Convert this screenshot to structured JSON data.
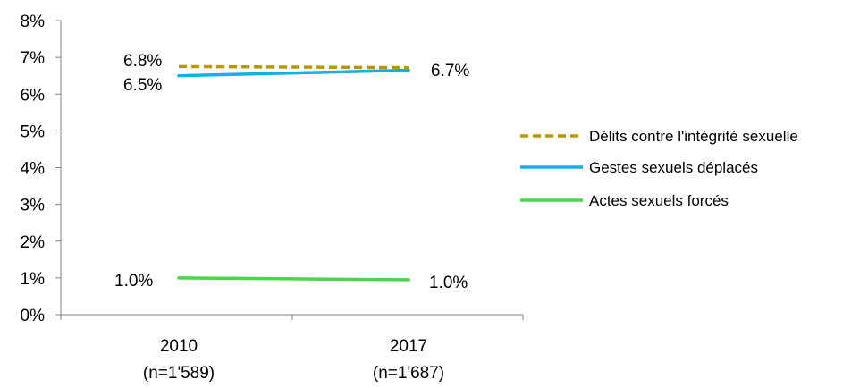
{
  "chart_data": {
    "type": "line",
    "categories": [
      "2010\n(n=1'589)",
      "2017\n(n=1'687)"
    ],
    "category_lines": [
      [
        "2010",
        "(n=1'589)"
      ],
      [
        "2017",
        "(n=1'687)"
      ]
    ],
    "y_ticks": [
      "0%",
      "1%",
      "2%",
      "3%",
      "4%",
      "5%",
      "6%",
      "7%",
      "8%"
    ],
    "ylim": [
      0,
      8
    ],
    "grid": false,
    "legend_position": "right",
    "series": [
      {
        "name": "Délits contre l'intégrité sexuelle",
        "values": [
          6.75,
          6.72
        ],
        "labels": [
          "6.8%",
          "6.7%"
        ],
        "color": "#b8960c",
        "dashed": true
      },
      {
        "name": "Gestes sexuels déplacés",
        "values": [
          6.5,
          6.65
        ],
        "labels": [
          "6.5%",
          ""
        ],
        "color": "#12b0e6",
        "dashed": false
      },
      {
        "name": "Actes sexuels forcés",
        "values": [
          1.0,
          0.95
        ],
        "labels": [
          "1.0%",
          "1.0%"
        ],
        "color": "#4cd44c",
        "dashed": false
      }
    ]
  }
}
